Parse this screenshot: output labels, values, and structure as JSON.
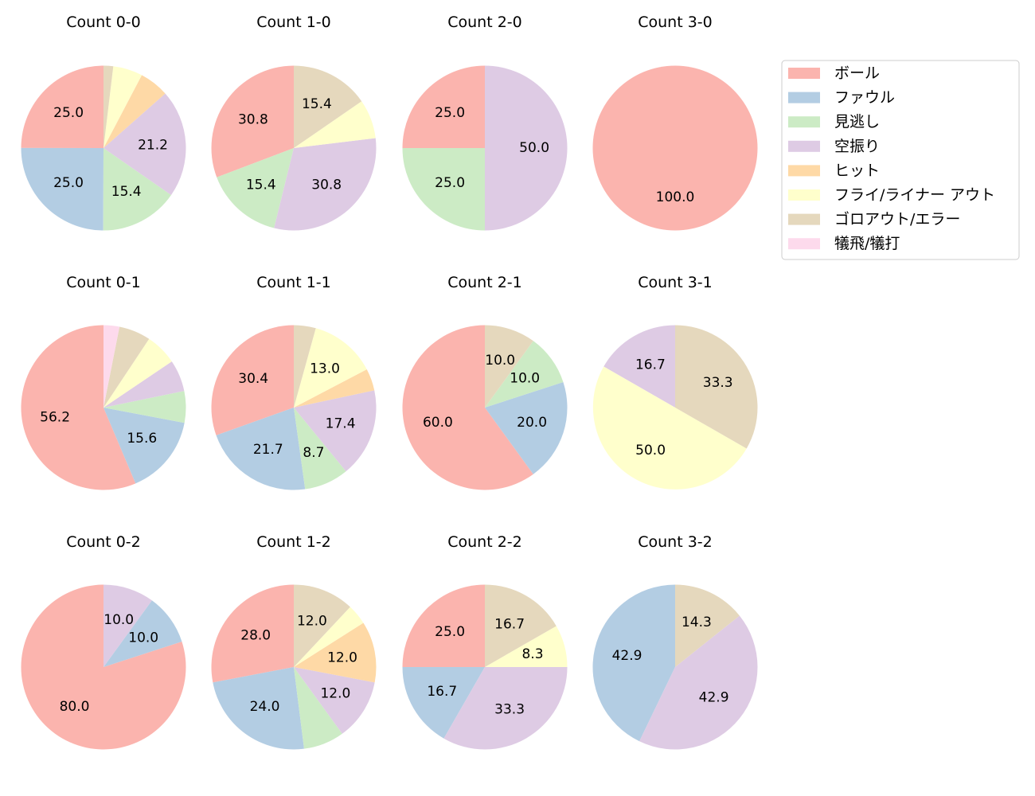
{
  "chart_data": {
    "type": "pie",
    "legend_position": "top-right",
    "categories": [
      "ボール",
      "ファウル",
      "見逃し",
      "空振り",
      "ヒット",
      "フライ/ライナー アウト",
      "ゴロアウト/エラー",
      "犠飛/犠打"
    ],
    "colors": [
      "#fbb4ae",
      "#b3cde3",
      "#ccebc5",
      "#decbe4",
      "#fed9a6",
      "#ffffcc",
      "#e5d8bd",
      "#fddaec"
    ],
    "pies": [
      {
        "title": "Count 0-0",
        "values": [
          25.0,
          25.0,
          15.4,
          21.2,
          5.8,
          5.8,
          1.9,
          0
        ],
        "labels": [
          "25.0",
          "25.0",
          "15.4",
          "21.2",
          "",
          "",
          "",
          ""
        ]
      },
      {
        "title": "Count 1-0",
        "values": [
          30.8,
          0,
          15.4,
          30.8,
          0,
          7.7,
          15.4,
          0
        ],
        "labels": [
          "30.8",
          "",
          "15.4",
          "30.8",
          "",
          "",
          "15.4",
          ""
        ]
      },
      {
        "title": "Count 2-0",
        "values": [
          25.0,
          0,
          25.0,
          50.0,
          0,
          0,
          0,
          0
        ],
        "labels": [
          "25.0",
          "",
          "25.0",
          "50.0",
          "",
          "",
          "",
          ""
        ]
      },
      {
        "title": "Count 3-0",
        "values": [
          100.0,
          0,
          0,
          0,
          0,
          0,
          0,
          0
        ],
        "labels": [
          "100.0",
          "",
          "",
          "",
          "",
          "",
          "",
          ""
        ]
      },
      {
        "title": "Count 0-1",
        "values": [
          56.2,
          15.6,
          6.2,
          6.2,
          0,
          6.2,
          6.2,
          3.1
        ],
        "labels": [
          "56.2",
          "15.6",
          "",
          "",
          "",
          "",
          "",
          ""
        ]
      },
      {
        "title": "Count 1-1",
        "values": [
          30.4,
          21.7,
          8.7,
          17.4,
          4.3,
          13.0,
          4.3,
          0
        ],
        "labels": [
          "30.4",
          "21.7",
          "8.7",
          "17.4",
          "",
          "13.0",
          "",
          ""
        ]
      },
      {
        "title": "Count 2-1",
        "values": [
          60.0,
          20.0,
          10.0,
          0,
          0,
          0,
          10.0,
          0
        ],
        "labels": [
          "60.0",
          "20.0",
          "10.0",
          "",
          "",
          "",
          "10.0",
          ""
        ]
      },
      {
        "title": "Count 3-1",
        "values": [
          0,
          0,
          0,
          16.7,
          0,
          50.0,
          33.3,
          0
        ],
        "labels": [
          "",
          "",
          "",
          "16.7",
          "",
          "50.0",
          "33.3",
          ""
        ]
      },
      {
        "title": "Count 0-2",
        "values": [
          80.0,
          10.0,
          0,
          10.0,
          0,
          0,
          0,
          0
        ],
        "labels": [
          "80.0",
          "10.0",
          "",
          "10.0",
          "",
          "",
          "",
          ""
        ]
      },
      {
        "title": "Count 1-2",
        "values": [
          28.0,
          24.0,
          8.0,
          12.0,
          12.0,
          4.0,
          12.0,
          0
        ],
        "labels": [
          "28.0",
          "24.0",
          "",
          "12.0",
          "12.0",
          "",
          "12.0",
          ""
        ]
      },
      {
        "title": "Count 2-2",
        "values": [
          25.0,
          16.7,
          0,
          33.3,
          0,
          8.3,
          16.7,
          0
        ],
        "labels": [
          "25.0",
          "16.7",
          "",
          "33.3",
          "",
          "8.3",
          "16.7",
          ""
        ]
      },
      {
        "title": "Count 3-2",
        "values": [
          0,
          42.9,
          0,
          42.9,
          0,
          0,
          14.3,
          0
        ],
        "labels": [
          "",
          "42.9",
          "",
          "42.9",
          "",
          "",
          "14.3",
          ""
        ]
      }
    ]
  }
}
